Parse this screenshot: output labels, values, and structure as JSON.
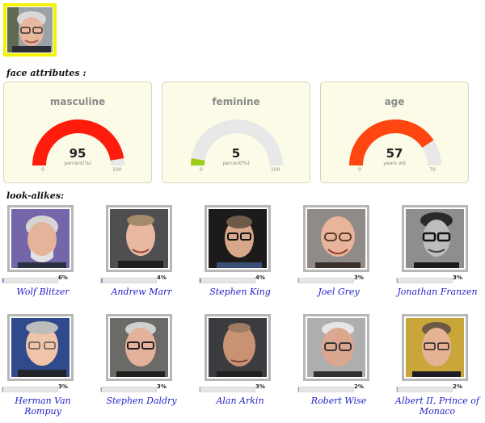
{
  "sections": {
    "face_attributes_label": "face attributes :",
    "look_alikes_label": "look-alikes:"
  },
  "gauges": [
    {
      "title": "masculine",
      "value": "95",
      "fraction": 0.95,
      "unit": "percent(%)",
      "min": "0",
      "max": "100",
      "color": "#ff1c0c"
    },
    {
      "title": "feminine",
      "value": "5",
      "fraction": 0.05,
      "unit": "percent(%)",
      "min": "0",
      "max": "100",
      "color": "#9ccc1a"
    },
    {
      "title": "age",
      "value": "57",
      "fraction": 0.814,
      "unit": "years old",
      "min": "0",
      "max": "70",
      "color": "#ff4611"
    }
  ],
  "lookalikes": [
    {
      "name": "Wolf Blitzer",
      "score": "6%",
      "fraction": 0.06
    },
    {
      "name": "Andrew Marr",
      "score": "4%",
      "fraction": 0.04
    },
    {
      "name": "Stephen King",
      "score": "4%",
      "fraction": 0.04
    },
    {
      "name": "Joel Grey",
      "score": "3%",
      "fraction": 0.03
    },
    {
      "name": "Jonathan Franzen",
      "score": "3%",
      "fraction": 0.03
    },
    {
      "name": "Herman Van Rompuy",
      "score": "3%",
      "fraction": 0.03
    },
    {
      "name": "Stephen Daldry",
      "score": "3%",
      "fraction": 0.03
    },
    {
      "name": "Alan Arkin",
      "score": "3%",
      "fraction": 0.03
    },
    {
      "name": "Robert Wise",
      "score": "2%",
      "fraction": 0.02
    },
    {
      "name": "Albert II, Prince of Monaco",
      "score": "2%",
      "fraction": 0.02
    }
  ],
  "colors": {
    "query_border": "#f5f200",
    "card_background": "#fbfbe8",
    "gauge_track": "#e8e8e8",
    "score_bar_fill": "#6fa1d2",
    "link": "#2323c8"
  }
}
